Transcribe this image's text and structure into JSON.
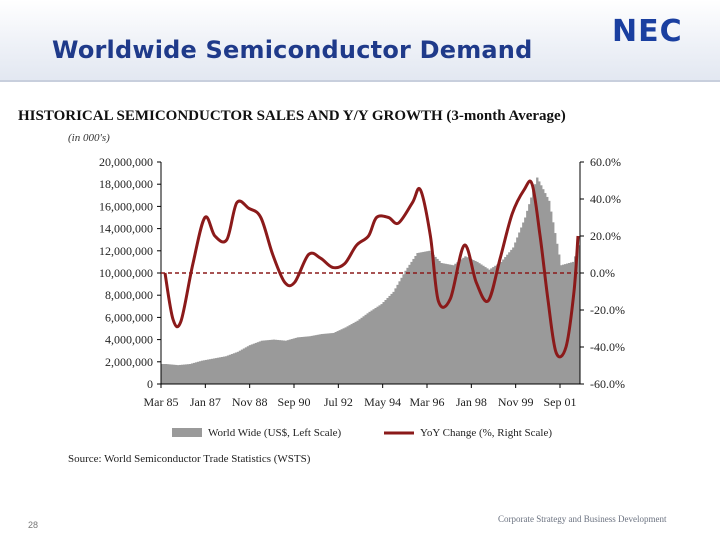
{
  "slide": {
    "title": "Worldwide Semiconductor Demand",
    "logo": "NEC",
    "page_number": "28",
    "footer": "Corporate Strategy and Business Development"
  },
  "chart_data": {
    "type": "bar+line",
    "title": "HISTORICAL SEMICONDUCTOR SALES AND Y/Y GROWTH (3-month Average)",
    "unit_note": "(in 000's)",
    "left_axis": {
      "ylim": [
        0,
        20000000
      ],
      "ticks": [
        "0",
        "2,000,000",
        "4,000,000",
        "6,000,000",
        "8,000,000",
        "10,000,000",
        "12,000,000",
        "14,000,000",
        "16,000,000",
        "18,000,000",
        "20,000,000"
      ]
    },
    "right_axis": {
      "ylim": [
        -60,
        60
      ],
      "ticks": [
        "-60.0%",
        "-40.0%",
        "-20.0%",
        "0.0%",
        "20.0%",
        "40.0%",
        "60.0%"
      ]
    },
    "x_tick_labels": [
      "Mar 85",
      "Jan 87",
      "Nov 88",
      "Sep 90",
      "Jul 92",
      "May 94",
      "Mar 96",
      "Jan 98",
      "Nov 99",
      "Sep 01"
    ],
    "reference_line": {
      "value_pct": 0.0,
      "style": "dashed",
      "color": "#8b1a1a"
    },
    "legend": [
      "World Wide (US$, Left Scale)",
      "YoY Change (%, Right Scale)"
    ],
    "source": "Source: World Semiconductor Trade Statistics (WSTS)",
    "colors": {
      "bars": "#9a9a9a",
      "line": "#8b1a1a"
    },
    "series": [
      {
        "name": "World Wide (US$, Left Scale)",
        "kind": "bar",
        "axis": "left",
        "points": [
          [
            "1985-03",
            1800000
          ],
          [
            "1985-09",
            1700000
          ],
          [
            "1986-03",
            1800000
          ],
          [
            "1986-09",
            2100000
          ],
          [
            "1987-03",
            2300000
          ],
          [
            "1987-09",
            2500000
          ],
          [
            "1988-03",
            2900000
          ],
          [
            "1988-09",
            3500000
          ],
          [
            "1989-03",
            3900000
          ],
          [
            "1989-09",
            4000000
          ],
          [
            "1990-03",
            3900000
          ],
          [
            "1990-09",
            4200000
          ],
          [
            "1991-03",
            4300000
          ],
          [
            "1991-09",
            4500000
          ],
          [
            "1992-03",
            4600000
          ],
          [
            "1992-09",
            5100000
          ],
          [
            "1993-03",
            5700000
          ],
          [
            "1993-09",
            6500000
          ],
          [
            "1994-03",
            7200000
          ],
          [
            "1994-09",
            8300000
          ],
          [
            "1995-03",
            10200000
          ],
          [
            "1995-09",
            11800000
          ],
          [
            "1996-03",
            12000000
          ],
          [
            "1996-09",
            10900000
          ],
          [
            "1997-03",
            10700000
          ],
          [
            "1997-09",
            11500000
          ],
          [
            "1998-03",
            11000000
          ],
          [
            "1998-09",
            10300000
          ],
          [
            "1999-03",
            11000000
          ],
          [
            "1999-09",
            12300000
          ],
          [
            "2000-03",
            15000000
          ],
          [
            "2000-09",
            18600000
          ],
          [
            "2001-03",
            16500000
          ],
          [
            "2001-09",
            10700000
          ],
          [
            "2002-03",
            11000000
          ],
          [
            "2002-06",
            12500000
          ]
        ]
      },
      {
        "name": "YoY Change (%, Right Scale)",
        "kind": "line",
        "axis": "right",
        "points": [
          [
            "1985-03",
            0
          ],
          [
            "1985-07",
            -25
          ],
          [
            "1985-11",
            -26
          ],
          [
            "1986-05",
            5
          ],
          [
            "1986-11",
            30
          ],
          [
            "1987-04",
            20
          ],
          [
            "1987-10",
            18
          ],
          [
            "1988-03",
            38
          ],
          [
            "1988-09",
            35
          ],
          [
            "1989-03",
            30
          ],
          [
            "1989-09",
            10
          ],
          [
            "1990-03",
            -5
          ],
          [
            "1990-08",
            -5
          ],
          [
            "1991-03",
            10
          ],
          [
            "1991-09",
            8
          ],
          [
            "1992-03",
            3
          ],
          [
            "1992-09",
            5
          ],
          [
            "1993-03",
            15
          ],
          [
            "1993-09",
            20
          ],
          [
            "1994-01",
            30
          ],
          [
            "1994-07",
            30
          ],
          [
            "1994-12",
            27
          ],
          [
            "1995-07",
            38
          ],
          [
            "1995-11",
            45
          ],
          [
            "1996-04",
            20
          ],
          [
            "1996-08",
            -15
          ],
          [
            "1997-02",
            -14
          ],
          [
            "1997-09",
            15
          ],
          [
            "1998-03",
            -5
          ],
          [
            "1998-09",
            -15
          ],
          [
            "1999-03",
            8
          ],
          [
            "1999-09",
            32
          ],
          [
            "2000-03",
            45
          ],
          [
            "2000-07",
            48
          ],
          [
            "2000-11",
            20
          ],
          [
            "2001-03",
            -15
          ],
          [
            "2001-07",
            -43
          ],
          [
            "2001-12",
            -40
          ],
          [
            "2002-04",
            -10
          ],
          [
            "2002-06",
            20
          ]
        ]
      }
    ]
  }
}
